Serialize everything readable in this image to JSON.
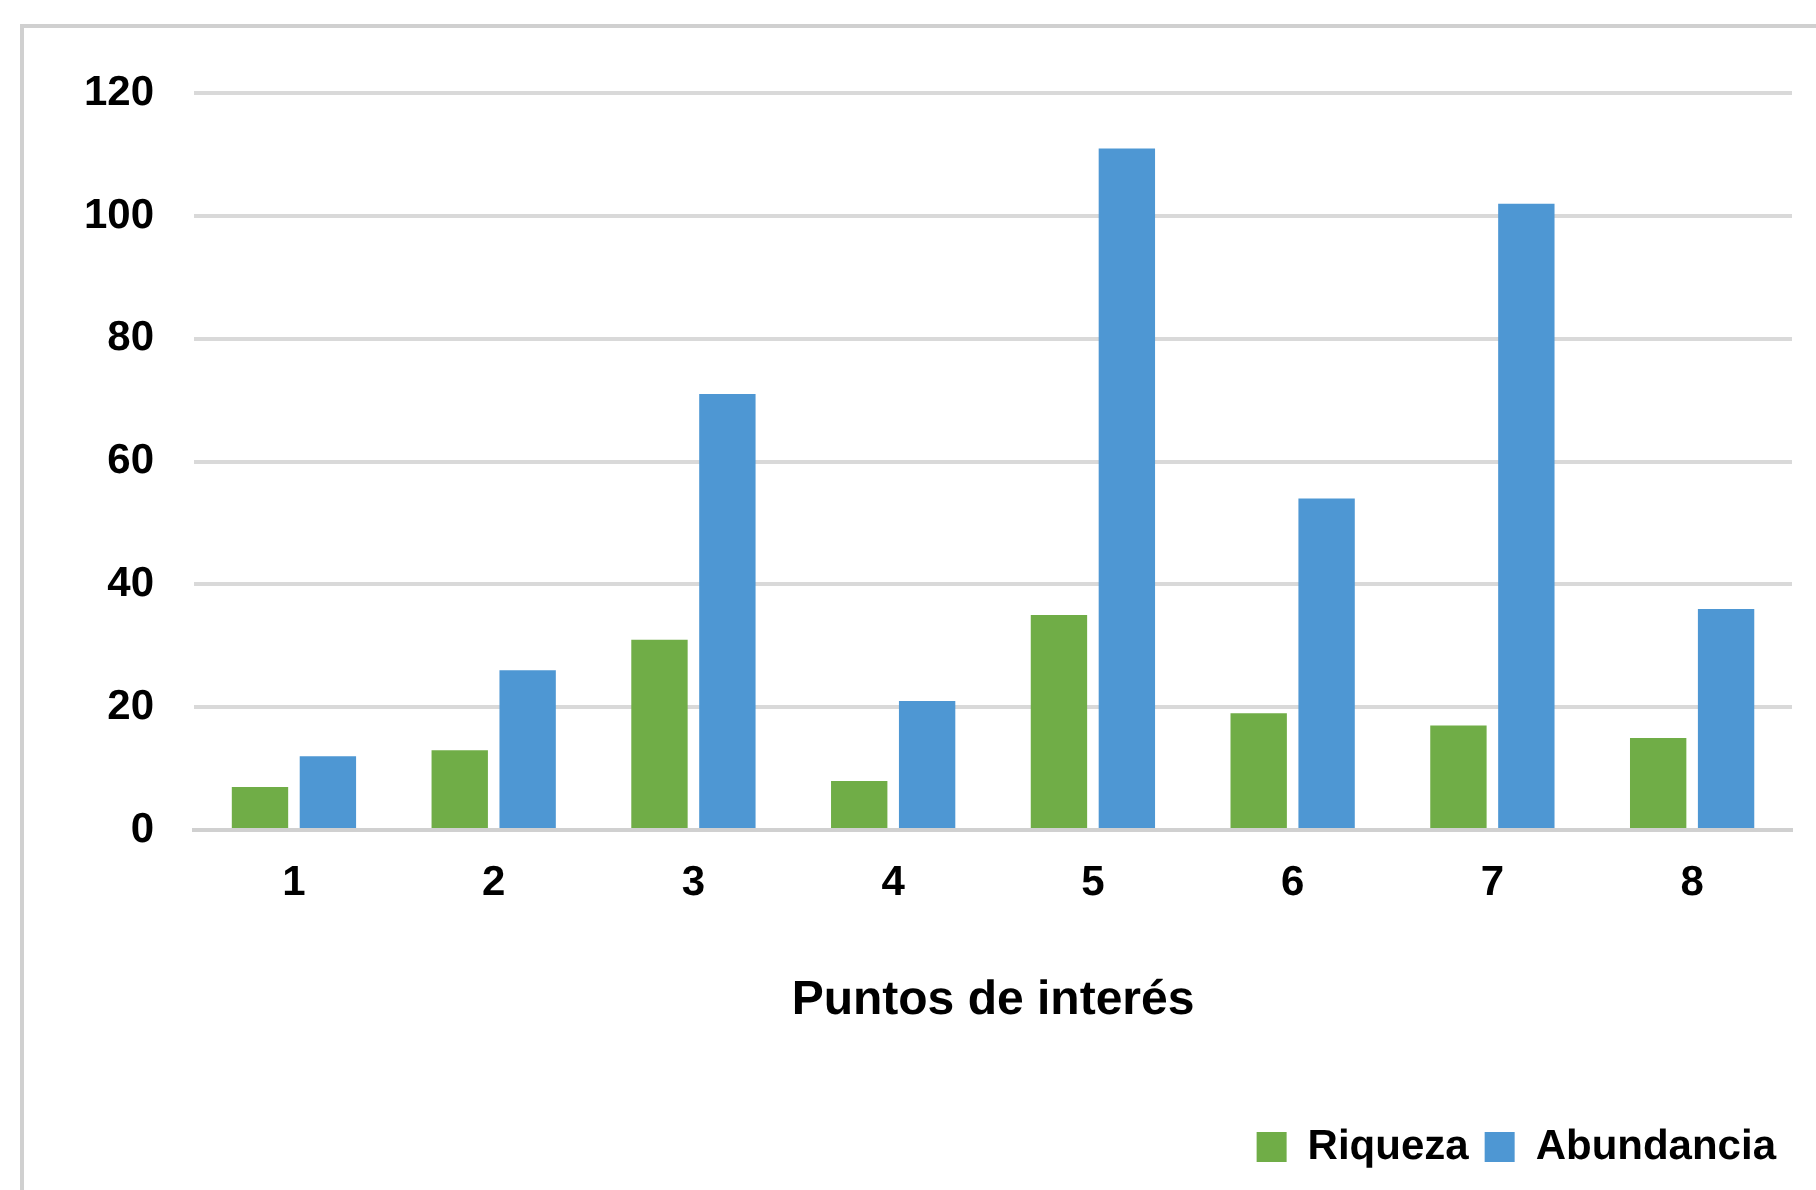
{
  "chart_data": {
    "type": "bar",
    "xlabel": "Puntos de interés",
    "categories": [
      "1",
      "2",
      "3",
      "4",
      "5",
      "6",
      "7",
      "8"
    ],
    "series": [
      {
        "name": "Riqueza",
        "color": "#70ad47",
        "values": [
          7,
          13,
          31,
          8,
          35,
          19,
          17,
          15
        ]
      },
      {
        "name": "Abundancia",
        "color": "#4e97d3",
        "values": [
          12,
          26,
          71,
          21,
          111,
          54,
          102,
          36
        ]
      }
    ],
    "ylim": [
      0,
      120
    ],
    "yticks": [
      0,
      20,
      40,
      60,
      80,
      100,
      120
    ],
    "grid": "y",
    "legend": "bottom right"
  }
}
